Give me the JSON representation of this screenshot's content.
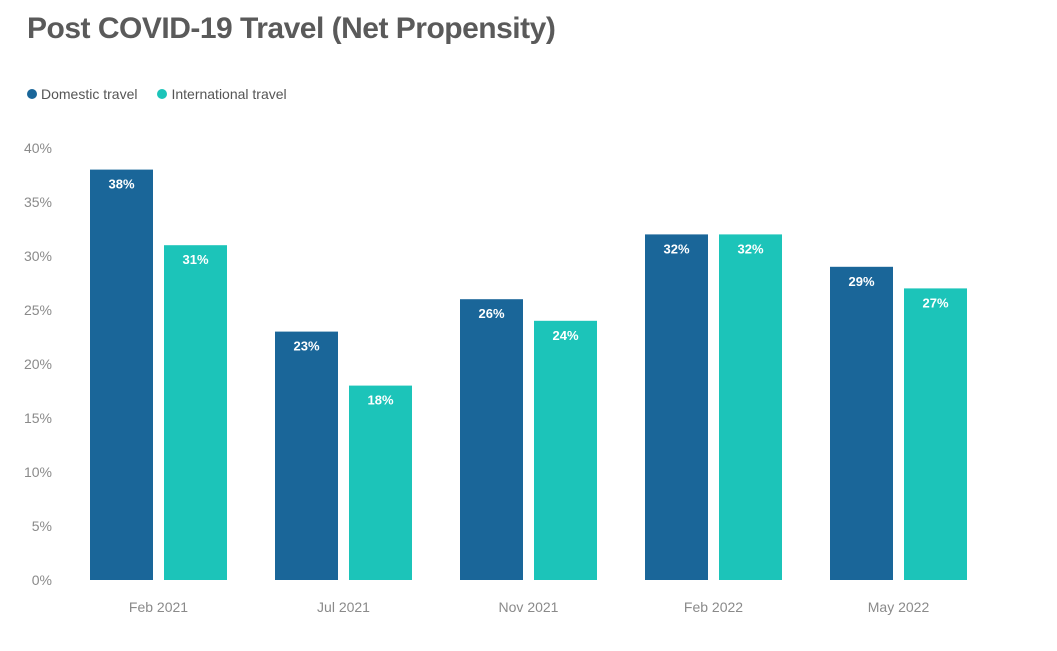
{
  "chart_data": {
    "type": "bar",
    "title": "Post COVID-19 Travel (Net Propensity)",
    "xlabel": "",
    "ylabel": "",
    "categories": [
      "Feb 2021",
      "Jul 2021",
      "Nov 2021",
      "Feb 2022",
      "May 2022"
    ],
    "series": [
      {
        "name": "Domestic travel",
        "color": "#1a6699",
        "values": [
          38,
          23,
          26,
          32,
          29
        ],
        "labels": [
          "38%",
          "23%",
          "26%",
          "32%",
          "29%"
        ]
      },
      {
        "name": "International travel",
        "color": "#1cc4b9",
        "values": [
          31,
          18,
          24,
          32,
          27
        ],
        "labels": [
          "31%",
          "18%",
          "24%",
          "32%",
          "27%"
        ]
      }
    ],
    "ylim": [
      0,
      40
    ],
    "yticks": [
      0,
      5,
      10,
      15,
      20,
      25,
      30,
      35,
      40
    ],
    "ytick_labels": [
      "0%",
      "5%",
      "10%",
      "15%",
      "20%",
      "25%",
      "30%",
      "35%",
      "40%"
    ],
    "legend_position": "top-left",
    "grid": false
  }
}
